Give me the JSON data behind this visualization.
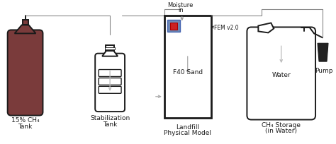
{
  "bg_color": "#ffffff",
  "line_color": "#1a1a1a",
  "tank1_color": "#7a3b3b",
  "sand_color": "#d4c4a0",
  "fem_blue": "#5577aa",
  "fem_red": "#cc2222",
  "arrow_color": "#aaaaaa",
  "connector_color": "#888888",
  "labels": {
    "tank1_line1": "15% CH₄",
    "tank1_line2": "Tank",
    "tank2_line1": "Stabilization",
    "tank2_line2": "Tank",
    "landfill_line1": "Landfill",
    "landfill_line2": "Physical Model",
    "moisture_line1": "Moisture",
    "moisture_line2": "in",
    "sand_label": "F40 Sand",
    "fem_label": "FEM v2.0",
    "water_label": "Water",
    "storage_line1": "CH₄ Storage",
    "storage_line2": "(in Water)",
    "pump_label": "Pump"
  },
  "figsize": [
    4.74,
    2.05
  ],
  "dpi": 100
}
